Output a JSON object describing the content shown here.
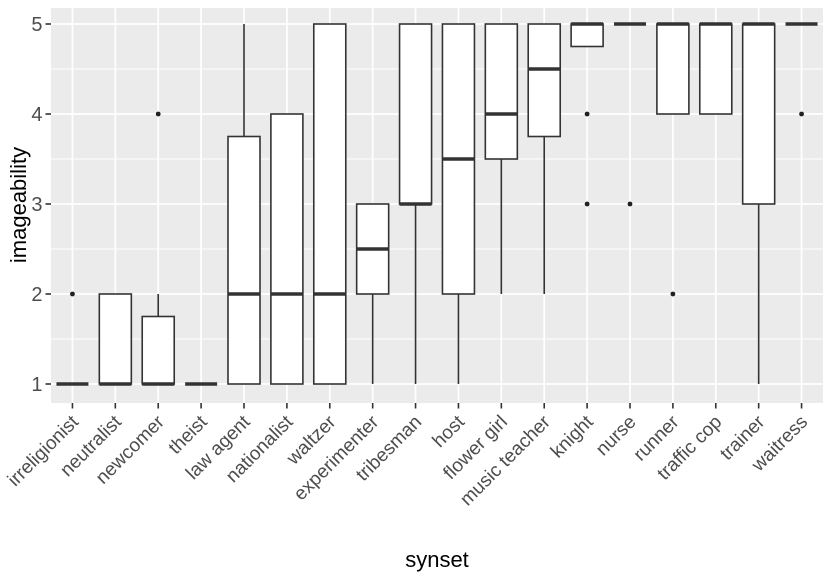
{
  "chart_data": {
    "type": "boxplot",
    "title": "",
    "xlabel": "synset",
    "ylabel": "imageability",
    "ylim": [
      1,
      5
    ],
    "yticks": [
      1,
      2,
      3,
      4,
      5
    ],
    "yticks_minor": [
      1.5,
      2.5,
      3.5,
      4.5
    ],
    "grid": "on",
    "legend": "none",
    "categories": [
      "irreligionist",
      "neutralist",
      "newcomer",
      "theist",
      "law agent",
      "nationalist",
      "waltzer",
      "experimenter",
      "tribesman",
      "host",
      "flower girl",
      "music teacher",
      "knight",
      "nurse",
      "runner",
      "traffic cop",
      "trainer",
      "waitress"
    ],
    "boxes": [
      {
        "category": "irreligionist",
        "whisker_low": 1,
        "q1": 1,
        "median": 1,
        "q3": 1,
        "whisker_high": 1,
        "outliers": [
          2
        ]
      },
      {
        "category": "neutralist",
        "whisker_low": 1,
        "q1": 1,
        "median": 1,
        "q3": 2,
        "whisker_high": 2,
        "outliers": []
      },
      {
        "category": "newcomer",
        "whisker_low": 1,
        "q1": 1,
        "median": 1,
        "q3": 1.75,
        "whisker_high": 2,
        "outliers": [
          4
        ]
      },
      {
        "category": "theist",
        "whisker_low": 1,
        "q1": 1,
        "median": 1,
        "q3": 1,
        "whisker_high": 1,
        "outliers": []
      },
      {
        "category": "law agent",
        "whisker_low": 1,
        "q1": 1,
        "median": 2,
        "q3": 3.75,
        "whisker_high": 5,
        "outliers": []
      },
      {
        "category": "nationalist",
        "whisker_low": 1,
        "q1": 1,
        "median": 2,
        "q3": 4,
        "whisker_high": 4,
        "outliers": []
      },
      {
        "category": "waltzer",
        "whisker_low": 1,
        "q1": 1,
        "median": 2,
        "q3": 5,
        "whisker_high": 5,
        "outliers": []
      },
      {
        "category": "experimenter",
        "whisker_low": 1,
        "q1": 2,
        "median": 2.5,
        "q3": 3,
        "whisker_high": 3,
        "outliers": []
      },
      {
        "category": "tribesman",
        "whisker_low": 1,
        "q1": 3,
        "median": 3,
        "q3": 5,
        "whisker_high": 5,
        "outliers": []
      },
      {
        "category": "host",
        "whisker_low": 1,
        "q1": 2,
        "median": 3.5,
        "q3": 5,
        "whisker_high": 5,
        "outliers": []
      },
      {
        "category": "flower girl",
        "whisker_low": 2,
        "q1": 3.5,
        "median": 4,
        "q3": 5,
        "whisker_high": 5,
        "outliers": []
      },
      {
        "category": "music teacher",
        "whisker_low": 2,
        "q1": 3.75,
        "median": 4.5,
        "q3": 5,
        "whisker_high": 5,
        "outliers": []
      },
      {
        "category": "knight",
        "whisker_low": 4.75,
        "q1": 4.75,
        "median": 5,
        "q3": 5,
        "whisker_high": 5,
        "outliers": [
          4,
          3
        ]
      },
      {
        "category": "nurse",
        "whisker_low": 5,
        "q1": 5,
        "median": 5,
        "q3": 5,
        "whisker_high": 5,
        "outliers": [
          3
        ]
      },
      {
        "category": "runner",
        "whisker_low": 4,
        "q1": 4,
        "median": 5,
        "q3": 5,
        "whisker_high": 5,
        "outliers": [
          2
        ]
      },
      {
        "category": "traffic cop",
        "whisker_low": 4,
        "q1": 4,
        "median": 5,
        "q3": 5,
        "whisker_high": 5,
        "outliers": []
      },
      {
        "category": "trainer",
        "whisker_low": 1,
        "q1": 3,
        "median": 5,
        "q3": 5,
        "whisker_high": 5,
        "outliers": []
      },
      {
        "category": "waitress",
        "whisker_low": 5,
        "q1": 5,
        "median": 5,
        "q3": 5,
        "whisker_high": 5,
        "outliers": [
          4
        ]
      }
    ]
  },
  "style": {
    "panel_bg": "#EBEBEB",
    "grid_color": "#FFFFFF",
    "box_stroke": "#333333",
    "box_fill": "#FFFFFF",
    "outlier_color": "#1F1F1F",
    "tick_mark_color": "#333333",
    "tick_label_color": "#4D4D4D",
    "axis_title_color": "#000000"
  }
}
